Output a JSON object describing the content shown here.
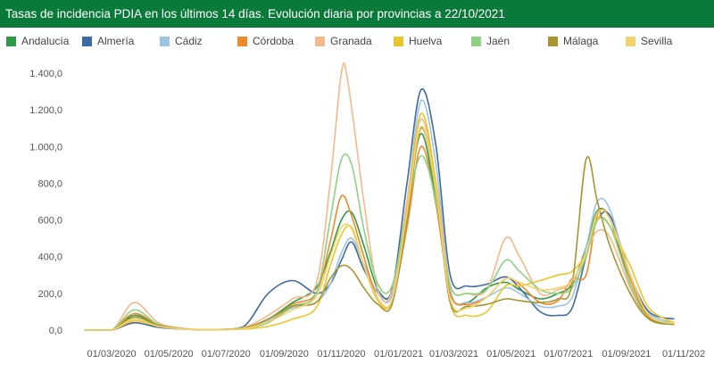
{
  "chart_data": {
    "type": "line",
    "title": "Tasas de incidencia PDIA en los últimos 14 días. Evolución diaria por provincias a 22/10/2021",
    "xlabel": "",
    "ylabel": "",
    "ylim": [
      0,
      1400
    ],
    "xlim": [
      "2020-01-20",
      "2021-11-01"
    ],
    "grid": false,
    "legend_position": "top",
    "y_ticks": [
      0,
      200,
      400,
      600,
      800,
      1000,
      1200,
      1400
    ],
    "y_tick_labels": [
      "0,0",
      "200,0",
      "400,0",
      "600,0",
      "800,0",
      "1.000,0",
      "1.200,0",
      "1.400,0"
    ],
    "x_ticks": [
      "2020-03-01",
      "2020-05-01",
      "2020-07-01",
      "2020-09-01",
      "2020-11-01",
      "2021-01-01",
      "2021-03-01",
      "2021-05-01",
      "2021-07-01",
      "2021-09-01",
      "2021-11-01"
    ],
    "x_tick_labels": [
      "01/03/2020",
      "01/05/2020",
      "01/07/2020",
      "01/09/2020",
      "01/11/2020",
      "01/01/2021",
      "01/03/2021",
      "01/05/2021",
      "01/07/2021",
      "01/09/2021",
      "01/11/202"
    ],
    "series": [
      {
        "name": "Andalucía",
        "color": "#2e9a46",
        "x": [
          "2020-02-01",
          "2020-03-01",
          "2020-03-25",
          "2020-04-20",
          "2020-05-20",
          "2020-06-20",
          "2020-07-20",
          "2020-08-15",
          "2020-09-10",
          "2020-10-05",
          "2020-10-20",
          "2020-11-01",
          "2020-11-12",
          "2020-11-25",
          "2020-12-10",
          "2020-12-25",
          "2021-01-10",
          "2021-01-25",
          "2021-02-10",
          "2021-02-25",
          "2021-03-15",
          "2021-04-05",
          "2021-04-25",
          "2021-05-10",
          "2021-06-01",
          "2021-06-20",
          "2021-07-05",
          "2021-07-20",
          "2021-08-01",
          "2021-08-15",
          "2021-09-05",
          "2021-09-25",
          "2021-10-22"
        ],
        "y": [
          0,
          0,
          80,
          30,
          5,
          3,
          10,
          60,
          150,
          230,
          420,
          600,
          640,
          460,
          220,
          210,
          650,
          1070,
          700,
          200,
          150,
          230,
          260,
          220,
          170,
          200,
          250,
          450,
          650,
          600,
          250,
          70,
          40
        ]
      },
      {
        "name": "Almería",
        "color": "#3d6aa2",
        "x": [
          "2020-02-01",
          "2020-03-01",
          "2020-03-25",
          "2020-04-20",
          "2020-05-20",
          "2020-06-20",
          "2020-07-20",
          "2020-08-15",
          "2020-09-10",
          "2020-10-05",
          "2020-10-20",
          "2020-11-01",
          "2020-11-12",
          "2020-11-25",
          "2020-12-10",
          "2020-12-25",
          "2021-01-10",
          "2021-01-25",
          "2021-02-10",
          "2021-02-25",
          "2021-03-15",
          "2021-04-05",
          "2021-04-25",
          "2021-05-10",
          "2021-06-01",
          "2021-06-20",
          "2021-07-05",
          "2021-07-20",
          "2021-08-01",
          "2021-08-15",
          "2021-09-05",
          "2021-09-25",
          "2021-10-22"
        ],
        "y": [
          0,
          0,
          40,
          15,
          5,
          3,
          20,
          200,
          270,
          200,
          250,
          380,
          480,
          330,
          210,
          220,
          800,
          1310,
          1000,
          300,
          240,
          250,
          290,
          230,
          100,
          80,
          120,
          400,
          600,
          620,
          300,
          100,
          60
        ]
      },
      {
        "name": "Cádiz",
        "color": "#9cc5e3",
        "x": [
          "2020-02-01",
          "2020-03-01",
          "2020-03-25",
          "2020-04-20",
          "2020-05-20",
          "2020-06-20",
          "2020-07-20",
          "2020-08-15",
          "2020-09-10",
          "2020-10-05",
          "2020-10-20",
          "2020-11-01",
          "2020-11-12",
          "2020-11-25",
          "2020-12-10",
          "2020-12-25",
          "2021-01-10",
          "2021-01-25",
          "2021-02-10",
          "2021-02-25",
          "2021-03-15",
          "2021-04-05",
          "2021-04-25",
          "2021-05-10",
          "2021-06-01",
          "2021-06-20",
          "2021-07-05",
          "2021-07-20",
          "2021-08-01",
          "2021-08-15",
          "2021-09-05",
          "2021-09-25",
          "2021-10-22"
        ],
        "y": [
          0,
          0,
          60,
          20,
          5,
          3,
          10,
          50,
          120,
          150,
          250,
          420,
          500,
          360,
          200,
          190,
          700,
          1250,
          900,
          220,
          150,
          180,
          230,
          200,
          130,
          130,
          180,
          450,
          700,
          650,
          280,
          90,
          40
        ]
      },
      {
        "name": "Córdoba",
        "color": "#ec8a2e",
        "x": [
          "2020-02-01",
          "2020-03-01",
          "2020-03-25",
          "2020-04-20",
          "2020-05-20",
          "2020-06-20",
          "2020-07-20",
          "2020-08-15",
          "2020-09-10",
          "2020-10-05",
          "2020-10-20",
          "2020-11-01",
          "2020-11-12",
          "2020-11-25",
          "2020-12-10",
          "2020-12-25",
          "2021-01-10",
          "2021-01-25",
          "2021-02-10",
          "2021-02-25",
          "2021-03-15",
          "2021-04-05",
          "2021-04-25",
          "2021-05-10",
          "2021-06-01",
          "2021-06-20",
          "2021-07-05",
          "2021-07-20",
          "2021-08-01",
          "2021-08-15",
          "2021-09-05",
          "2021-09-25",
          "2021-10-22"
        ],
        "y": [
          0,
          0,
          90,
          30,
          5,
          3,
          10,
          40,
          140,
          200,
          480,
          730,
          620,
          400,
          170,
          160,
          560,
          1000,
          680,
          200,
          140,
          180,
          280,
          250,
          150,
          160,
          280,
          300,
          630,
          600,
          280,
          70,
          30
        ]
      },
      {
        "name": "Granada",
        "color": "#f5b888",
        "x": [
          "2020-02-01",
          "2020-03-01",
          "2020-03-25",
          "2020-04-20",
          "2020-05-20",
          "2020-06-20",
          "2020-07-20",
          "2020-08-15",
          "2020-09-10",
          "2020-10-05",
          "2020-10-20",
          "2020-11-01",
          "2020-11-08",
          "2020-11-25",
          "2020-12-10",
          "2020-12-25",
          "2021-01-10",
          "2021-01-25",
          "2021-02-10",
          "2021-02-25",
          "2021-03-15",
          "2021-04-05",
          "2021-04-25",
          "2021-05-10",
          "2021-06-01",
          "2021-06-20",
          "2021-07-05",
          "2021-07-20",
          "2021-08-01",
          "2021-08-15",
          "2021-09-05",
          "2021-09-25",
          "2021-10-22"
        ],
        "y": [
          0,
          0,
          150,
          40,
          8,
          3,
          15,
          80,
          170,
          250,
          800,
          1400,
          1350,
          700,
          220,
          210,
          700,
          1150,
          800,
          250,
          200,
          220,
          500,
          400,
          200,
          220,
          260,
          420,
          540,
          500,
          230,
          60,
          30
        ]
      },
      {
        "name": "Huelva",
        "color": "#ecc52a",
        "x": [
          "2020-02-01",
          "2020-03-01",
          "2020-03-25",
          "2020-04-20",
          "2020-05-20",
          "2020-06-20",
          "2020-07-20",
          "2020-08-15",
          "2020-09-10",
          "2020-10-05",
          "2020-10-20",
          "2020-11-01",
          "2020-11-12",
          "2020-11-25",
          "2020-12-10",
          "2020-12-25",
          "2021-01-10",
          "2021-01-25",
          "2021-02-10",
          "2021-02-25",
          "2021-03-15",
          "2021-04-05",
          "2021-04-25",
          "2021-05-10",
          "2021-06-01",
          "2021-06-20",
          "2021-07-05",
          "2021-07-20",
          "2021-08-01",
          "2021-08-15",
          "2021-09-05",
          "2021-09-25",
          "2021-10-22"
        ],
        "y": [
          0,
          0,
          50,
          20,
          5,
          3,
          5,
          20,
          60,
          120,
          350,
          520,
          560,
          350,
          160,
          160,
          650,
          1180,
          800,
          150,
          80,
          100,
          240,
          240,
          270,
          300,
          320,
          420,
          610,
          560,
          350,
          120,
          40
        ]
      },
      {
        "name": "Jaén",
        "color": "#8fd085",
        "x": [
          "2020-02-01",
          "2020-03-01",
          "2020-03-25",
          "2020-04-20",
          "2020-05-20",
          "2020-06-20",
          "2020-07-20",
          "2020-08-15",
          "2020-09-10",
          "2020-10-05",
          "2020-10-20",
          "2020-11-01",
          "2020-11-12",
          "2020-11-25",
          "2020-12-10",
          "2020-12-25",
          "2021-01-10",
          "2021-01-25",
          "2021-02-10",
          "2021-02-25",
          "2021-03-15",
          "2021-04-05",
          "2021-04-25",
          "2021-05-10",
          "2021-06-01",
          "2021-06-20",
          "2021-07-05",
          "2021-07-20",
          "2021-08-01",
          "2021-08-15",
          "2021-09-05",
          "2021-09-25",
          "2021-10-22"
        ],
        "y": [
          0,
          0,
          110,
          30,
          5,
          3,
          10,
          40,
          130,
          200,
          600,
          930,
          900,
          550,
          250,
          240,
          650,
          950,
          700,
          240,
          200,
          220,
          380,
          320,
          220,
          200,
          230,
          400,
          600,
          560,
          250,
          60,
          30
        ]
      },
      {
        "name": "Málaga",
        "color": "#a89530",
        "x": [
          "2020-02-01",
          "2020-03-01",
          "2020-03-25",
          "2020-04-20",
          "2020-05-20",
          "2020-06-20",
          "2020-07-20",
          "2020-08-15",
          "2020-09-10",
          "2020-10-05",
          "2020-10-20",
          "2020-11-01",
          "2020-11-12",
          "2020-11-25",
          "2020-12-10",
          "2020-12-25",
          "2021-01-10",
          "2021-01-25",
          "2021-02-10",
          "2021-02-25",
          "2021-03-15",
          "2021-04-05",
          "2021-04-25",
          "2021-05-10",
          "2021-06-01",
          "2021-06-20",
          "2021-07-05",
          "2021-07-20",
          "2021-08-01",
          "2021-08-15",
          "2021-09-05",
          "2021-09-25",
          "2021-10-22"
        ],
        "y": [
          0,
          0,
          70,
          25,
          5,
          3,
          10,
          60,
          130,
          150,
          280,
          350,
          330,
          230,
          140,
          140,
          600,
          1100,
          750,
          150,
          130,
          140,
          170,
          160,
          150,
          170,
          250,
          930,
          700,
          450,
          200,
          60,
          30
        ]
      },
      {
        "name": "Sevilla",
        "color": "#f3d36e",
        "x": [
          "2020-02-01",
          "2020-03-01",
          "2020-03-25",
          "2020-04-20",
          "2020-05-20",
          "2020-06-20",
          "2020-07-20",
          "2020-08-15",
          "2020-09-10",
          "2020-10-05",
          "2020-10-20",
          "2020-11-01",
          "2020-11-12",
          "2020-11-25",
          "2020-12-10",
          "2020-12-25",
          "2021-01-10",
          "2021-01-25",
          "2021-02-10",
          "2021-02-25",
          "2021-03-15",
          "2021-04-05",
          "2021-04-25",
          "2021-05-10",
          "2021-06-01",
          "2021-06-20",
          "2021-07-05",
          "2021-07-20",
          "2021-08-01",
          "2021-08-15",
          "2021-09-05",
          "2021-09-25",
          "2021-10-22"
        ],
        "y": [
          0,
          0,
          60,
          20,
          5,
          3,
          8,
          45,
          110,
          180,
          400,
          560,
          550,
          350,
          170,
          165,
          640,
          1110,
          760,
          170,
          120,
          180,
          280,
          260,
          220,
          230,
          270,
          420,
          640,
          600,
          300,
          80,
          35
        ]
      }
    ]
  }
}
